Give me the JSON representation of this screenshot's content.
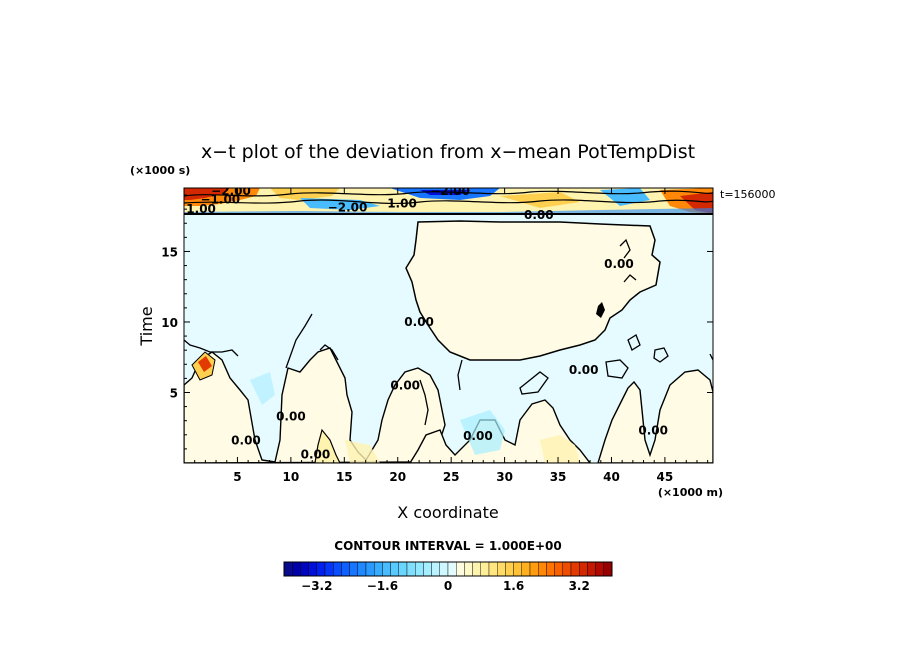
{
  "chart_data": {
    "type": "heatmap",
    "title": "x−t plot of the deviation from x−mean PotTempDist",
    "xlabel": "X coordinate",
    "ylabel": "Time",
    "x_unit": "(×1000 m)",
    "y_unit": "(×1000 s)",
    "time_stamp": "t=156000",
    "xlim": [
      0,
      49.5
    ],
    "ylim": [
      0,
      19.5
    ],
    "x_ticks": [
      5,
      10,
      15,
      20,
      25,
      30,
      35,
      40,
      45
    ],
    "y_ticks": [
      5,
      10,
      15
    ],
    "contour_interval_text": "CONTOUR INTERVAL = 1.000E+00",
    "contour_labels": [
      {
        "text": "0.00",
        "x": 33.2,
        "y": 17.6
      },
      {
        "text": "0.00",
        "x": 40.7,
        "y": 14.1
      },
      {
        "text": "0.00",
        "x": 22.0,
        "y": 10.0
      },
      {
        "text": "0.00",
        "x": 37.4,
        "y": 6.6
      },
      {
        "text": "0.00",
        "x": 20.7,
        "y": 5.5
      },
      {
        "text": "0.00",
        "x": 10.0,
        "y": 3.3
      },
      {
        "text": "0.00",
        "x": 27.5,
        "y": 1.9
      },
      {
        "text": "0.00",
        "x": 5.8,
        "y": 1.6
      },
      {
        "text": "0.00",
        "x": 12.3,
        "y": 0.6
      },
      {
        "text": "0.00",
        "x": 43.9,
        "y": 2.3
      },
      {
        "text": "−2.00",
        "x": 4.4,
        "y": 19.3
      },
      {
        "text": "−1.00",
        "x": 3.4,
        "y": 18.7
      },
      {
        "text": "−2.00",
        "x": 24.9,
        "y": 19.3
      },
      {
        "text": "−2.00",
        "x": 15.3,
        "y": 18.1
      },
      {
        "text": "1.00",
        "x": 20.4,
        "y": 18.4
      },
      {
        "text": "1.00",
        "x": 1.6,
        "y": 18.0
      }
    ],
    "colorbar": {
      "min": -4,
      "max": 4,
      "step": 0.2,
      "tick_values": [
        -3.2,
        -1.6,
        0,
        1.6,
        3.2
      ],
      "tick_labels": [
        "−3.2",
        "−1.6",
        "0",
        "1.6",
        "3.2"
      ],
      "colors": [
        "#0a0a8c",
        "#0000a8",
        "#0005c0",
        "#0010d8",
        "#0020ee",
        "#0535f8",
        "#0a4cff",
        "#1060ff",
        "#1875ff",
        "#2088ff",
        "#2a9aff",
        "#38acff",
        "#48bcff",
        "#58caff",
        "#6ad6ff",
        "#7edfff",
        "#92e8ff",
        "#a6eeff",
        "#baf3ff",
        "#cef7ff",
        "#e2fbff",
        "#fffbe0",
        "#fff8c8",
        "#fff3b0",
        "#ffee98",
        "#ffe680",
        "#ffdc68",
        "#ffd050",
        "#ffc138",
        "#ffb020",
        "#ff9c10",
        "#ff8808",
        "#ff7400",
        "#f86000",
        "#ee4c00",
        "#e23a00",
        "#d42800",
        "#c41800",
        "#b00a00",
        "#960000"
      ]
    },
    "field_description_colors": {
      "near_zero_negative": "#e6fbff",
      "near_zero_positive": "#fffbe4",
      "weak_negative": "#a6eeff",
      "weak_positive": "#fff3b0",
      "strong_positive": "#ff8808",
      "strong_negative": "#0535f8",
      "contour_line": "#000000"
    }
  }
}
